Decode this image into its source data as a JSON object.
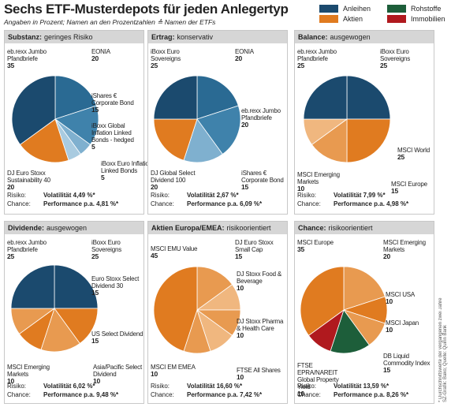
{
  "header": {
    "title": "Sechs ETF-Musterdepots für jeden Anlegertyp",
    "subtitle": "Angaben in Prozent; Namen an den Prozentzahlen ≙ Namen der ETFs"
  },
  "legend": {
    "names": [
      "Anleihen",
      "Aktien",
      "Rohstoffe",
      "Immobilien"
    ],
    "colors": [
      "#1b4a6e",
      "#e07b20",
      "#1d5e3a",
      "#b0191e"
    ]
  },
  "notes": [
    "* Durchschnittswerte der vergangenen zwei Jahre",
    "SZ-Grafik: Bako; Quelle: Quirin Bank"
  ],
  "chart_data": [
    {
      "type": "pie",
      "title": "Substanz:",
      "subtitle": "geringes Risiko",
      "categories": [
        "EONIA",
        "iShares € Corporate Bond",
        "iBoxx Global Inflation Linked Bonds - hedged",
        "iBoxx Euro Inflation Linked Bonds",
        "DJ Euro Stoxx Sustainability 40",
        "eb.rexx Jumbo Pfandbriefe"
      ],
      "values": [
        20,
        15,
        5,
        5,
        20,
        35
      ],
      "colors": [
        "#2a6a93",
        "#3f82ab",
        "#7fb0cf",
        "#a9cbe0",
        "#e07b20",
        "#1b4a6e"
      ],
      "risk_label": "Risiko:",
      "risk": "Volatilität 4,49 %*",
      "chance_label": "Chance:",
      "chance": "Performance p.a. 4,81 %*"
    },
    {
      "type": "pie",
      "title": "Ertrag:",
      "subtitle": "konservativ",
      "categories": [
        "EONIA",
        "eb.rexx Jumbo Pfandbriefe",
        "iShares € Corporate Bond",
        "DJ Global Select Dividend 100",
        "iBoxx Euro Sovereigns"
      ],
      "values": [
        20,
        20,
        15,
        20,
        25
      ],
      "colors": [
        "#2a6a93",
        "#3f82ab",
        "#7fb0cf",
        "#e07b20",
        "#1b4a6e"
      ],
      "risk_label": "Risiko:",
      "risk": "Volatilität 2,67 %*",
      "chance_label": "Chance:",
      "chance": "Performance p.a. 6,09 %*"
    },
    {
      "type": "pie",
      "title": "Balance:",
      "subtitle": "ausgewogen",
      "categories": [
        "iBoxx Euro Sovereigns",
        "MSCI World",
        "MSCI Europe",
        "MSCI Emerging Markets",
        "eb.rexx Jumbo Pfandbriefe"
      ],
      "values": [
        25,
        25,
        15,
        10,
        25
      ],
      "colors": [
        "#1b4a6e",
        "#e07b20",
        "#e89a50",
        "#f0b77f",
        "#1b4a6e"
      ],
      "risk_label": "Risiko:",
      "risk": "Volatilität 7,99 %*",
      "chance_label": "Chance:",
      "chance": "Performance p.a. 4,98 %*"
    },
    {
      "type": "pie",
      "title": "Dividende:",
      "subtitle": "ausgewogen",
      "categories": [
        "iBoxx Euro Sovereigns",
        "Euro Stoxx Select Dividend 30",
        "US Select Dividend",
        "Asia/Pacific Select Dividend",
        "MSCI Emerging Markets",
        "eb.rexx Jumbo Pfandbriefe"
      ],
      "values": [
        25,
        15,
        15,
        10,
        10,
        25
      ],
      "colors": [
        "#1b4a6e",
        "#e07b20",
        "#e89a50",
        "#e07b20",
        "#e89a50",
        "#1b4a6e"
      ],
      "risk_label": "Risiko:",
      "risk": "Volatilität 6,02 %*",
      "chance_label": "Chance:",
      "chance": "Performance p.a. 9,48 %*"
    },
    {
      "type": "pie",
      "title": "Aktien Europa/EMEA:",
      "subtitle": "risikoorientiert",
      "categories": [
        "DJ Euro Stoxx Small Cap",
        "DJ Stoxx Food & Beverage",
        "DJ Stoxx Pharma & Health Care",
        "FTSE All Shares",
        "MSCI EM EMEA",
        "MSCI EMU Value"
      ],
      "values": [
        15,
        10,
        10,
        10,
        10,
        45
      ],
      "colors": [
        "#e89a50",
        "#f0b77f",
        "#e89a50",
        "#f0b77f",
        "#e89a50",
        "#e07b20"
      ],
      "risk_label": "Risiko:",
      "risk": "Volatilität 16,60 %*",
      "chance_label": "Chance:",
      "chance": "Performance p.a. 7,42 %*"
    },
    {
      "type": "pie",
      "title": "Chance:",
      "subtitle": "risikoorientiert",
      "categories": [
        "MSCI Emerging Markets",
        "MSCI USA",
        "MSCI Japan",
        "DB Liquid Commodity Index",
        "FTSE EPRA/NAREIT Global Property Yield",
        "MSCI Europe"
      ],
      "values": [
        20,
        10,
        10,
        15,
        10,
        35
      ],
      "colors": [
        "#e89a50",
        "#e07b20",
        "#e89a50",
        "#1d5e3a",
        "#b0191e",
        "#e07b20"
      ],
      "risk_label": "Risiko:",
      "risk": "Volatilität 13,59 %*",
      "chance_label": "Chance:",
      "chance": "Performance p.a. 8,26 %*"
    }
  ]
}
